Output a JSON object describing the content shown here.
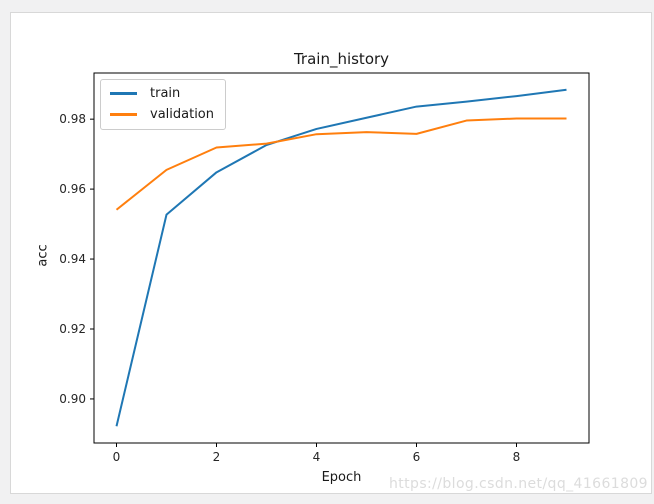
{
  "page": {
    "watermark": "https://blog.csdn.net/qq_41661809"
  },
  "chart_data": {
    "type": "line",
    "title": "Train_history",
    "xlabel": "Epoch",
    "ylabel": "acc",
    "x": [
      0,
      1,
      2,
      3,
      4,
      5,
      6,
      7,
      8,
      9
    ],
    "series": [
      {
        "name": "train",
        "color": "#1f77b4",
        "values": [
          0.8922,
          0.9527,
          0.9648,
          0.9726,
          0.9772,
          0.9804,
          0.9836,
          0.985,
          0.9866,
          0.9884
        ]
      },
      {
        "name": "validation",
        "color": "#ff7f0e",
        "values": [
          0.9541,
          0.9655,
          0.9719,
          0.973,
          0.9757,
          0.9763,
          0.9758,
          0.9796,
          0.9802,
          0.9802
        ]
      }
    ],
    "xticks": [
      0,
      2,
      4,
      6,
      8
    ],
    "yticks": [
      0.9,
      0.92,
      0.94,
      0.96,
      0.98
    ],
    "xlim": [
      -0.45,
      9.45
    ],
    "ylim": [
      0.8874,
      0.9932
    ],
    "grid": false,
    "legend_position": "upper left",
    "axis_color": "#000000",
    "tick_label_color": "#262626"
  }
}
